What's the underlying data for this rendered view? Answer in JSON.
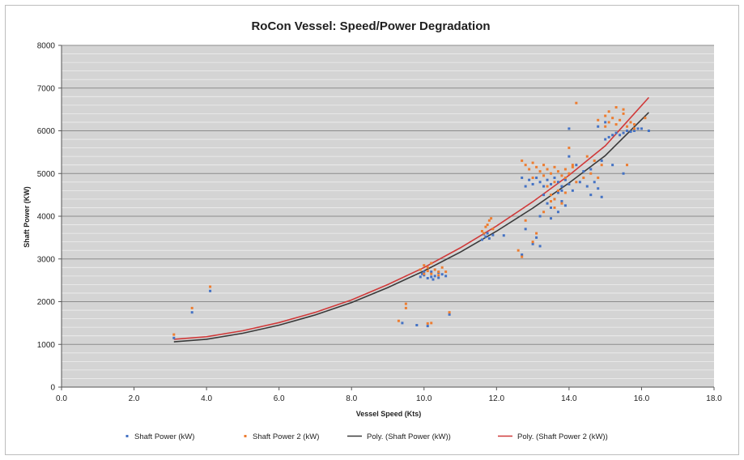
{
  "chart_data": {
    "type": "scatter",
    "title": "RoCon Vessel: Speed/Power Degradation",
    "xlabel": "Vessel Speed (Kts)",
    "ylabel": "Shaft Power (KW)",
    "xlim": [
      0,
      18
    ],
    "ylim": [
      0,
      8000
    ],
    "x_ticks": [
      "0.0",
      "2.0",
      "4.0",
      "6.0",
      "8.0",
      "10.0",
      "12.0",
      "14.0",
      "16.0",
      "18.0"
    ],
    "y_ticks": [
      "0",
      "1000",
      "2000",
      "3000",
      "4000",
      "5000",
      "6000",
      "7000",
      "8000"
    ],
    "grid": true,
    "plot_background": "#d4d4d4",
    "legend_position": "bottom",
    "series": [
      {
        "name": "Shaft Power (kW)",
        "kind": "scatter",
        "color": "#4472c4",
        "points": [
          [
            3.1,
            1150
          ],
          [
            3.6,
            1750
          ],
          [
            4.1,
            2250
          ],
          [
            9.4,
            1500
          ],
          [
            9.8,
            1450
          ],
          [
            10.1,
            1430
          ],
          [
            10.7,
            1700
          ],
          [
            9.9,
            2580
          ],
          [
            10.0,
            2620
          ],
          [
            10.1,
            2550
          ],
          [
            10.2,
            2700
          ],
          [
            10.3,
            2600
          ],
          [
            10.4,
            2560
          ],
          [
            10.5,
            2640
          ],
          [
            10.0,
            2700
          ],
          [
            10.2,
            2580
          ],
          [
            10.4,
            2680
          ],
          [
            10.6,
            2600
          ],
          [
            9.95,
            2650
          ],
          [
            10.25,
            2520
          ],
          [
            11.6,
            3450
          ],
          [
            11.7,
            3520
          ],
          [
            11.8,
            3480
          ],
          [
            11.9,
            3560
          ],
          [
            11.75,
            3600
          ],
          [
            11.65,
            3580
          ],
          [
            12.2,
            3550
          ],
          [
            12.7,
            3100
          ],
          [
            12.8,
            3700
          ],
          [
            13.0,
            3350
          ],
          [
            13.1,
            3500
          ],
          [
            13.2,
            3300
          ],
          [
            12.7,
            4900
          ],
          [
            12.8,
            4700
          ],
          [
            12.9,
            4850
          ],
          [
            13.0,
            4750
          ],
          [
            13.1,
            4900
          ],
          [
            13.2,
            4800
          ],
          [
            13.3,
            4700
          ],
          [
            13.4,
            4850
          ],
          [
            13.5,
            4750
          ],
          [
            13.6,
            4900
          ],
          [
            13.7,
            4800
          ],
          [
            13.8,
            4700
          ],
          [
            13.9,
            4850
          ],
          [
            14.0,
            4750
          ],
          [
            13.3,
            4500
          ],
          [
            13.4,
            4300
          ],
          [
            13.5,
            4200
          ],
          [
            13.6,
            4400
          ],
          [
            13.7,
            4100
          ],
          [
            13.8,
            4350
          ],
          [
            13.9,
            4250
          ],
          [
            13.2,
            4000
          ],
          [
            13.5,
            3950
          ],
          [
            13.7,
            4550
          ],
          [
            13.8,
            4600
          ],
          [
            14.1,
            4600
          ],
          [
            14.3,
            4800
          ],
          [
            14.5,
            4700
          ],
          [
            14.6,
            4500
          ],
          [
            14.7,
            4800
          ],
          [
            14.8,
            4650
          ],
          [
            14.9,
            4450
          ],
          [
            14.4,
            5050
          ],
          [
            14.6,
            5100
          ],
          [
            15.0,
            5800
          ],
          [
            15.1,
            5850
          ],
          [
            15.2,
            5900
          ],
          [
            15.3,
            5950
          ],
          [
            15.4,
            5900
          ],
          [
            15.5,
            5950
          ],
          [
            15.6,
            6000
          ],
          [
            15.7,
            5980
          ],
          [
            15.8,
            6000
          ],
          [
            15.9,
            6050
          ],
          [
            16.0,
            6050
          ],
          [
            16.2,
            6000
          ],
          [
            15.0,
            6200
          ],
          [
            14.8,
            6100
          ],
          [
            14.0,
            6050
          ],
          [
            14.9,
            5300
          ],
          [
            15.2,
            5200
          ],
          [
            15.5,
            5000
          ],
          [
            14.0,
            5400
          ],
          [
            14.2,
            5200
          ]
        ]
      },
      {
        "name": "Shaft Power 2 (kW)",
        "kind": "scatter",
        "color": "#ed7d31",
        "points": [
          [
            3.1,
            1230
          ],
          [
            3.6,
            1850
          ],
          [
            4.1,
            2350
          ],
          [
            9.3,
            1550
          ],
          [
            9.5,
            1950
          ],
          [
            9.5,
            1850
          ],
          [
            10.1,
            1490
          ],
          [
            10.2,
            1500
          ],
          [
            10.7,
            1750
          ],
          [
            9.9,
            2750
          ],
          [
            10.0,
            2850
          ],
          [
            10.1,
            2800
          ],
          [
            10.2,
            2900
          ],
          [
            10.3,
            2750
          ],
          [
            10.4,
            2700
          ],
          [
            10.5,
            2800
          ],
          [
            10.0,
            2650
          ],
          [
            10.2,
            2650
          ],
          [
            10.4,
            2620
          ],
          [
            10.6,
            2700
          ],
          [
            10.1,
            2720
          ],
          [
            11.6,
            3650
          ],
          [
            11.7,
            3750
          ],
          [
            11.8,
            3900
          ],
          [
            11.9,
            3700
          ],
          [
            11.75,
            3800
          ],
          [
            11.65,
            3600
          ],
          [
            11.85,
            3950
          ],
          [
            12.6,
            3200
          ],
          [
            12.7,
            3050
          ],
          [
            13.0,
            3400
          ],
          [
            13.1,
            3600
          ],
          [
            12.8,
            3900
          ],
          [
            12.7,
            5300
          ],
          [
            12.8,
            5200
          ],
          [
            12.9,
            5100
          ],
          [
            13.0,
            5250
          ],
          [
            13.1,
            5150
          ],
          [
            13.2,
            5050
          ],
          [
            13.3,
            5200
          ],
          [
            13.4,
            5100
          ],
          [
            13.5,
            5000
          ],
          [
            13.6,
            5150
          ],
          [
            13.7,
            5050
          ],
          [
            13.8,
            4950
          ],
          [
            13.9,
            5100
          ],
          [
            14.0,
            5000
          ],
          [
            14.1,
            5150
          ],
          [
            13.0,
            4900
          ],
          [
            13.3,
            4950
          ],
          [
            13.6,
            4800
          ],
          [
            13.9,
            4900
          ],
          [
            13.4,
            4700
          ],
          [
            13.5,
            4500
          ],
          [
            13.6,
            4400
          ],
          [
            13.7,
            4600
          ],
          [
            13.8,
            4300
          ],
          [
            13.9,
            4550
          ],
          [
            13.5,
            4350
          ],
          [
            13.3,
            4100
          ],
          [
            13.6,
            4200
          ],
          [
            14.2,
            4800
          ],
          [
            14.4,
            4900
          ],
          [
            14.6,
            5000
          ],
          [
            14.8,
            4900
          ],
          [
            14.7,
            5300
          ],
          [
            14.5,
            5400
          ],
          [
            14.9,
            5200
          ],
          [
            14.1,
            5200
          ],
          [
            15.0,
            6100
          ],
          [
            15.1,
            6200
          ],
          [
            15.2,
            6300
          ],
          [
            15.3,
            6150
          ],
          [
            15.4,
            6250
          ],
          [
            15.5,
            6400
          ],
          [
            15.6,
            6100
          ],
          [
            15.7,
            6200
          ],
          [
            15.8,
            6150
          ],
          [
            15.1,
            6450
          ],
          [
            15.3,
            6550
          ],
          [
            15.5,
            6500
          ],
          [
            15.8,
            6050
          ],
          [
            14.8,
            6250
          ],
          [
            15.0,
            6350
          ],
          [
            14.2,
            6650
          ],
          [
            15.6,
            5200
          ],
          [
            14.0,
            5600
          ],
          [
            16.1,
            6300
          ]
        ]
      },
      {
        "name": "Poly. (Shaft Power (kW))",
        "kind": "trendline",
        "color": "#3a3a3a",
        "points": [
          [
            3.1,
            1060
          ],
          [
            4.0,
            1120
          ],
          [
            5.0,
            1260
          ],
          [
            6.0,
            1450
          ],
          [
            7.0,
            1690
          ],
          [
            8.0,
            1980
          ],
          [
            9.0,
            2330
          ],
          [
            10.0,
            2720
          ],
          [
            11.0,
            3160
          ],
          [
            12.0,
            3650
          ],
          [
            13.0,
            4190
          ],
          [
            14.0,
            4780
          ],
          [
            15.0,
            5420
          ],
          [
            16.2,
            6430
          ]
        ]
      },
      {
        "name": "Poly. (Shaft Power 2 (kW))",
        "kind": "trendline",
        "color": "#d03a3a",
        "points": [
          [
            3.1,
            1120
          ],
          [
            4.0,
            1180
          ],
          [
            5.0,
            1320
          ],
          [
            6.0,
            1510
          ],
          [
            7.0,
            1750
          ],
          [
            8.0,
            2040
          ],
          [
            9.0,
            2400
          ],
          [
            10.0,
            2800
          ],
          [
            11.0,
            3260
          ],
          [
            12.0,
            3770
          ],
          [
            13.0,
            4340
          ],
          [
            14.0,
            4960
          ],
          [
            15.0,
            5650
          ],
          [
            16.2,
            6780
          ]
        ]
      }
    ]
  }
}
